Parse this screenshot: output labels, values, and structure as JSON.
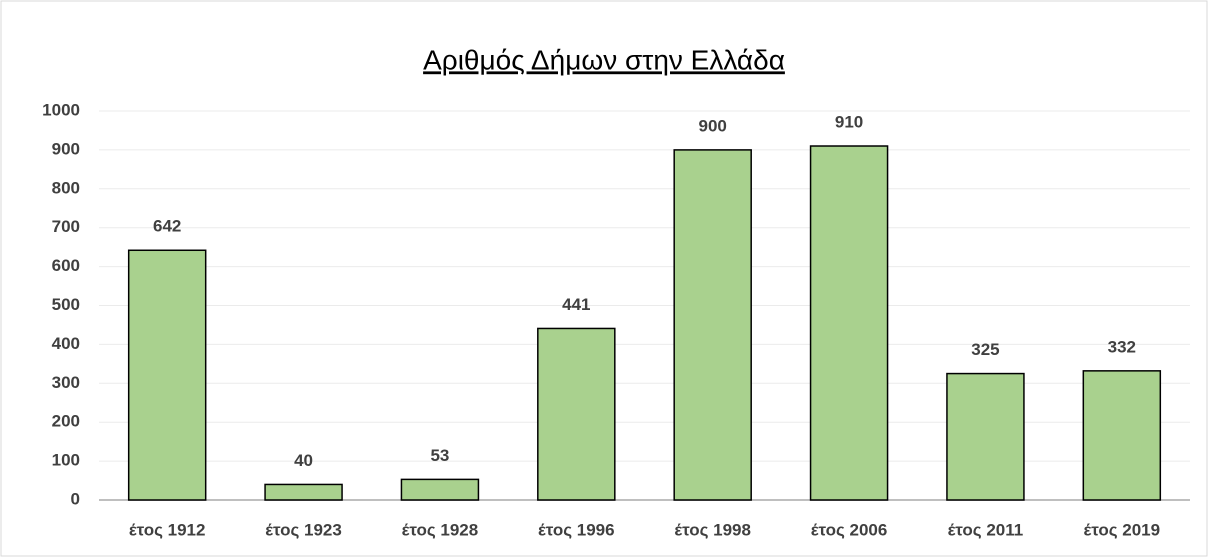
{
  "chart_data": {
    "type": "bar",
    "title": "Αριθμός Δήμων στην Ελλάδα",
    "categories": [
      "έτος 1912",
      "έτος 1923",
      "έτος 1928",
      "έτος 1996",
      "έτος 1998",
      "έτος 2006",
      "έτος 2011",
      "έτος 2019"
    ],
    "values": [
      642,
      40,
      53,
      441,
      900,
      910,
      325,
      332
    ],
    "color": "#a9d18e",
    "ylim": [
      0,
      1000
    ],
    "yticks": [
      0,
      100,
      200,
      300,
      400,
      500,
      600,
      700,
      800,
      900,
      1000
    ],
    "grid": true,
    "data_labels": true
  }
}
